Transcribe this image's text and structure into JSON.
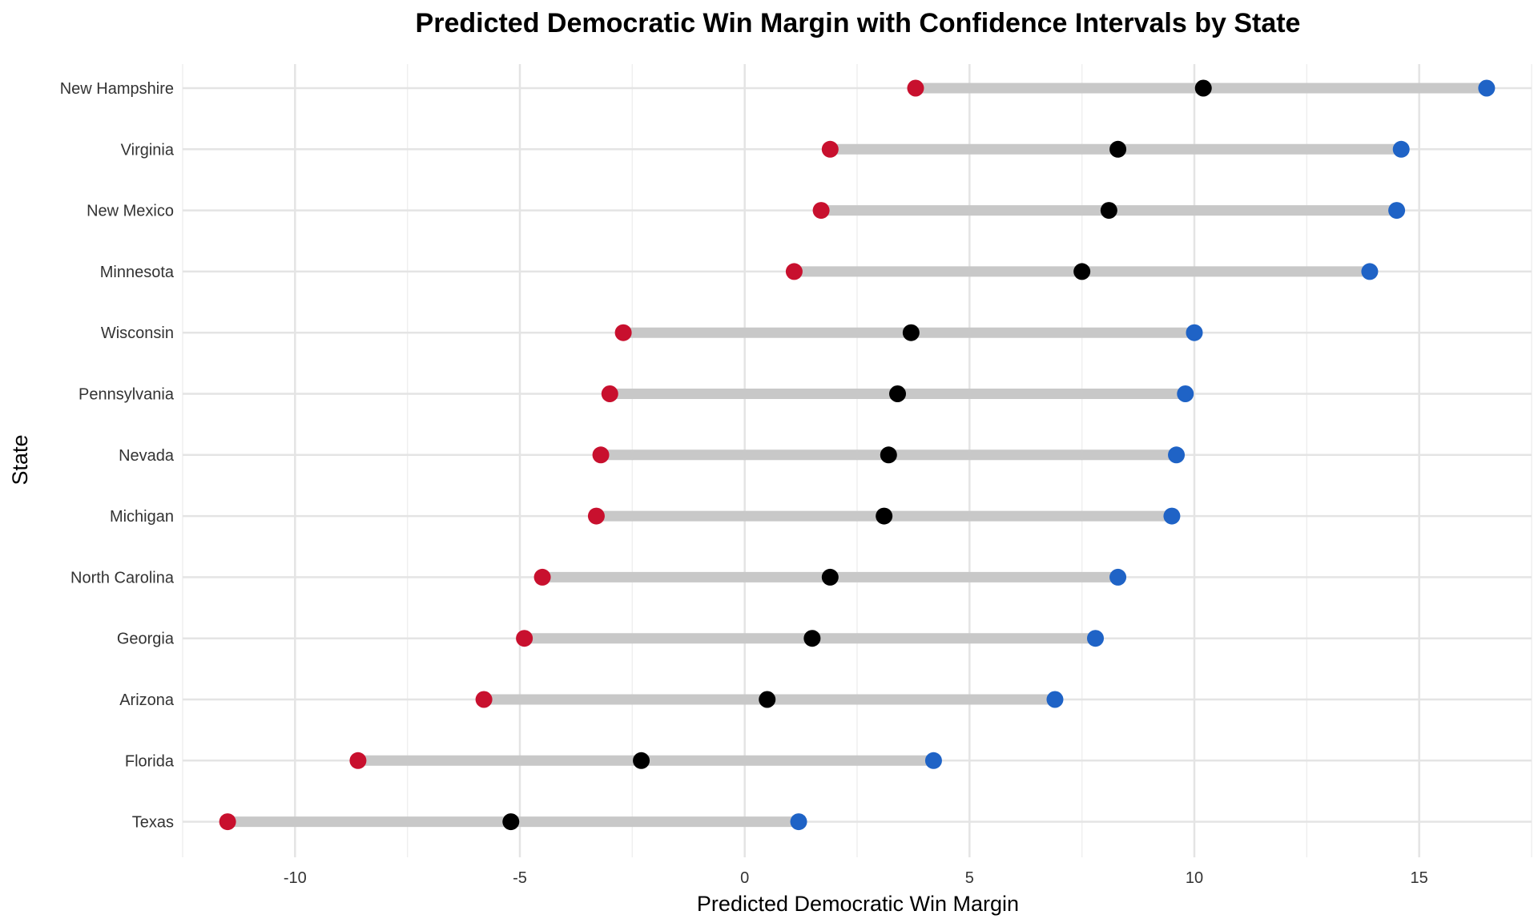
{
  "chart_data": {
    "type": "dumbbell",
    "title": "Predicted Democratic Win Margin with Confidence Intervals by State",
    "xlabel": "Predicted Democratic Win Margin",
    "ylabel": "State",
    "xlim": [
      -12.5,
      17.5
    ],
    "x_ticks": [
      -10,
      -5,
      0,
      5,
      10,
      15
    ],
    "x_tick_labels": [
      "-10",
      "-5",
      "0",
      "5",
      "10",
      "15"
    ],
    "grid": true,
    "legend": "none",
    "colors": {
      "lower": "#c8102e",
      "predicted": "#000000",
      "upper": "#1f63c6",
      "interval": "#c8c8c8",
      "grid": "#e4e4e4"
    },
    "states": [
      {
        "state": "New Hampshire",
        "lower": 3.8,
        "predicted": 10.2,
        "upper": 16.5
      },
      {
        "state": "Virginia",
        "lower": 1.9,
        "predicted": 8.3,
        "upper": 14.6
      },
      {
        "state": "New Mexico",
        "lower": 1.7,
        "predicted": 8.1,
        "upper": 14.5
      },
      {
        "state": "Minnesota",
        "lower": 1.1,
        "predicted": 7.5,
        "upper": 13.9
      },
      {
        "state": "Wisconsin",
        "lower": -2.7,
        "predicted": 3.7,
        "upper": 10.0
      },
      {
        "state": "Pennsylvania",
        "lower": -3.0,
        "predicted": 3.4,
        "upper": 9.8
      },
      {
        "state": "Nevada",
        "lower": -3.2,
        "predicted": 3.2,
        "upper": 9.6
      },
      {
        "state": "Michigan",
        "lower": -3.3,
        "predicted": 3.1,
        "upper": 9.5
      },
      {
        "state": "North Carolina",
        "lower": -4.5,
        "predicted": 1.9,
        "upper": 8.3
      },
      {
        "state": "Georgia",
        "lower": -4.9,
        "predicted": 1.5,
        "upper": 7.8
      },
      {
        "state": "Arizona",
        "lower": -5.8,
        "predicted": 0.5,
        "upper": 6.9
      },
      {
        "state": "Florida",
        "lower": -8.6,
        "predicted": -2.3,
        "upper": 4.2
      },
      {
        "state": "Texas",
        "lower": -11.5,
        "predicted": -5.2,
        "upper": 1.2
      }
    ]
  }
}
